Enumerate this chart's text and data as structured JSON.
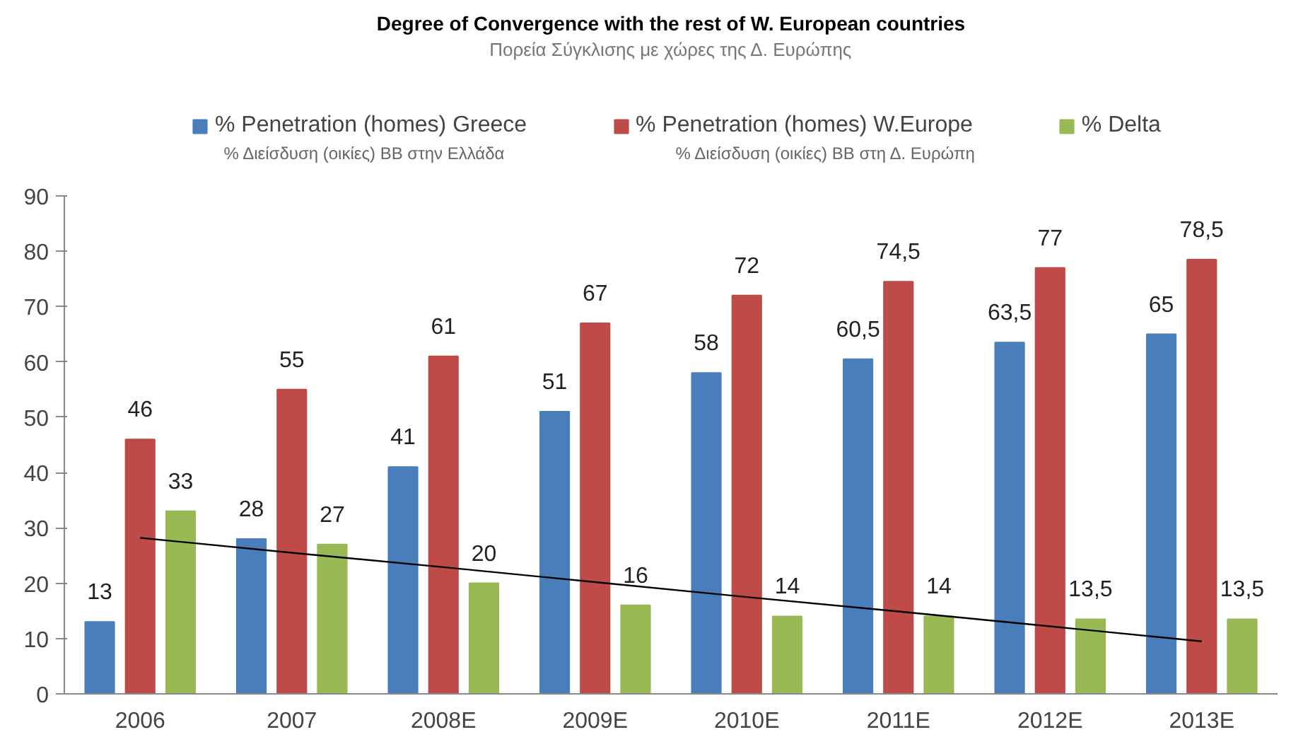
{
  "chart_data": {
    "type": "bar",
    "title": "Degree of Convergence with the rest of W. European countries",
    "subtitle": "Πορεία Σύγκλισης με χώρες της Δ. Ευρώπης",
    "categories": [
      "2006",
      "2007",
      "2008E",
      "2009E",
      "2010E",
      "2011E",
      "2012E",
      "2013E"
    ],
    "series": [
      {
        "name": "% Penetration (homes) Greece",
        "color": "#4a7ebb",
        "values": [
          13,
          28,
          41,
          51,
          58,
          60.5,
          63.5,
          65
        ],
        "value_labels": [
          "13",
          "28",
          "41",
          "51",
          "58",
          "60,5",
          "63,5",
          "65"
        ]
      },
      {
        "name": "% Penetration (homes) W.Europe",
        "color": "#be4b48",
        "values": [
          46,
          55,
          61,
          67,
          72,
          74.5,
          77,
          78.5
        ],
        "value_labels": [
          "46",
          "55",
          "61",
          "67",
          "72",
          "74,5",
          "77",
          "78,5"
        ]
      },
      {
        "name": "% Delta",
        "color": "#98b954",
        "values": [
          33,
          27,
          20,
          16,
          14,
          14,
          13.5,
          13.5
        ],
        "value_labels": [
          "33",
          "27",
          "20",
          "16",
          "14",
          "14",
          "13,5",
          "13,5"
        ]
      },
      {
        "type": "line",
        "color": "#000000",
        "values": [
          28.2,
          25.5,
          22.9,
          20.2,
          17.5,
          14.9,
          12.2,
          9.5
        ]
      }
    ],
    "annotations": [
      "% Διείσδυση (οικίες) ΒΒ στην Ελλάδα",
      "% Διείσδυση (οικίες) ΒΒ στη Δ. Ευρώπη"
    ],
    "ylim": [
      0,
      90
    ],
    "yticks": [
      0,
      10,
      20,
      30,
      40,
      50,
      60,
      70,
      80,
      90
    ],
    "grid": false,
    "legend": "top"
  }
}
